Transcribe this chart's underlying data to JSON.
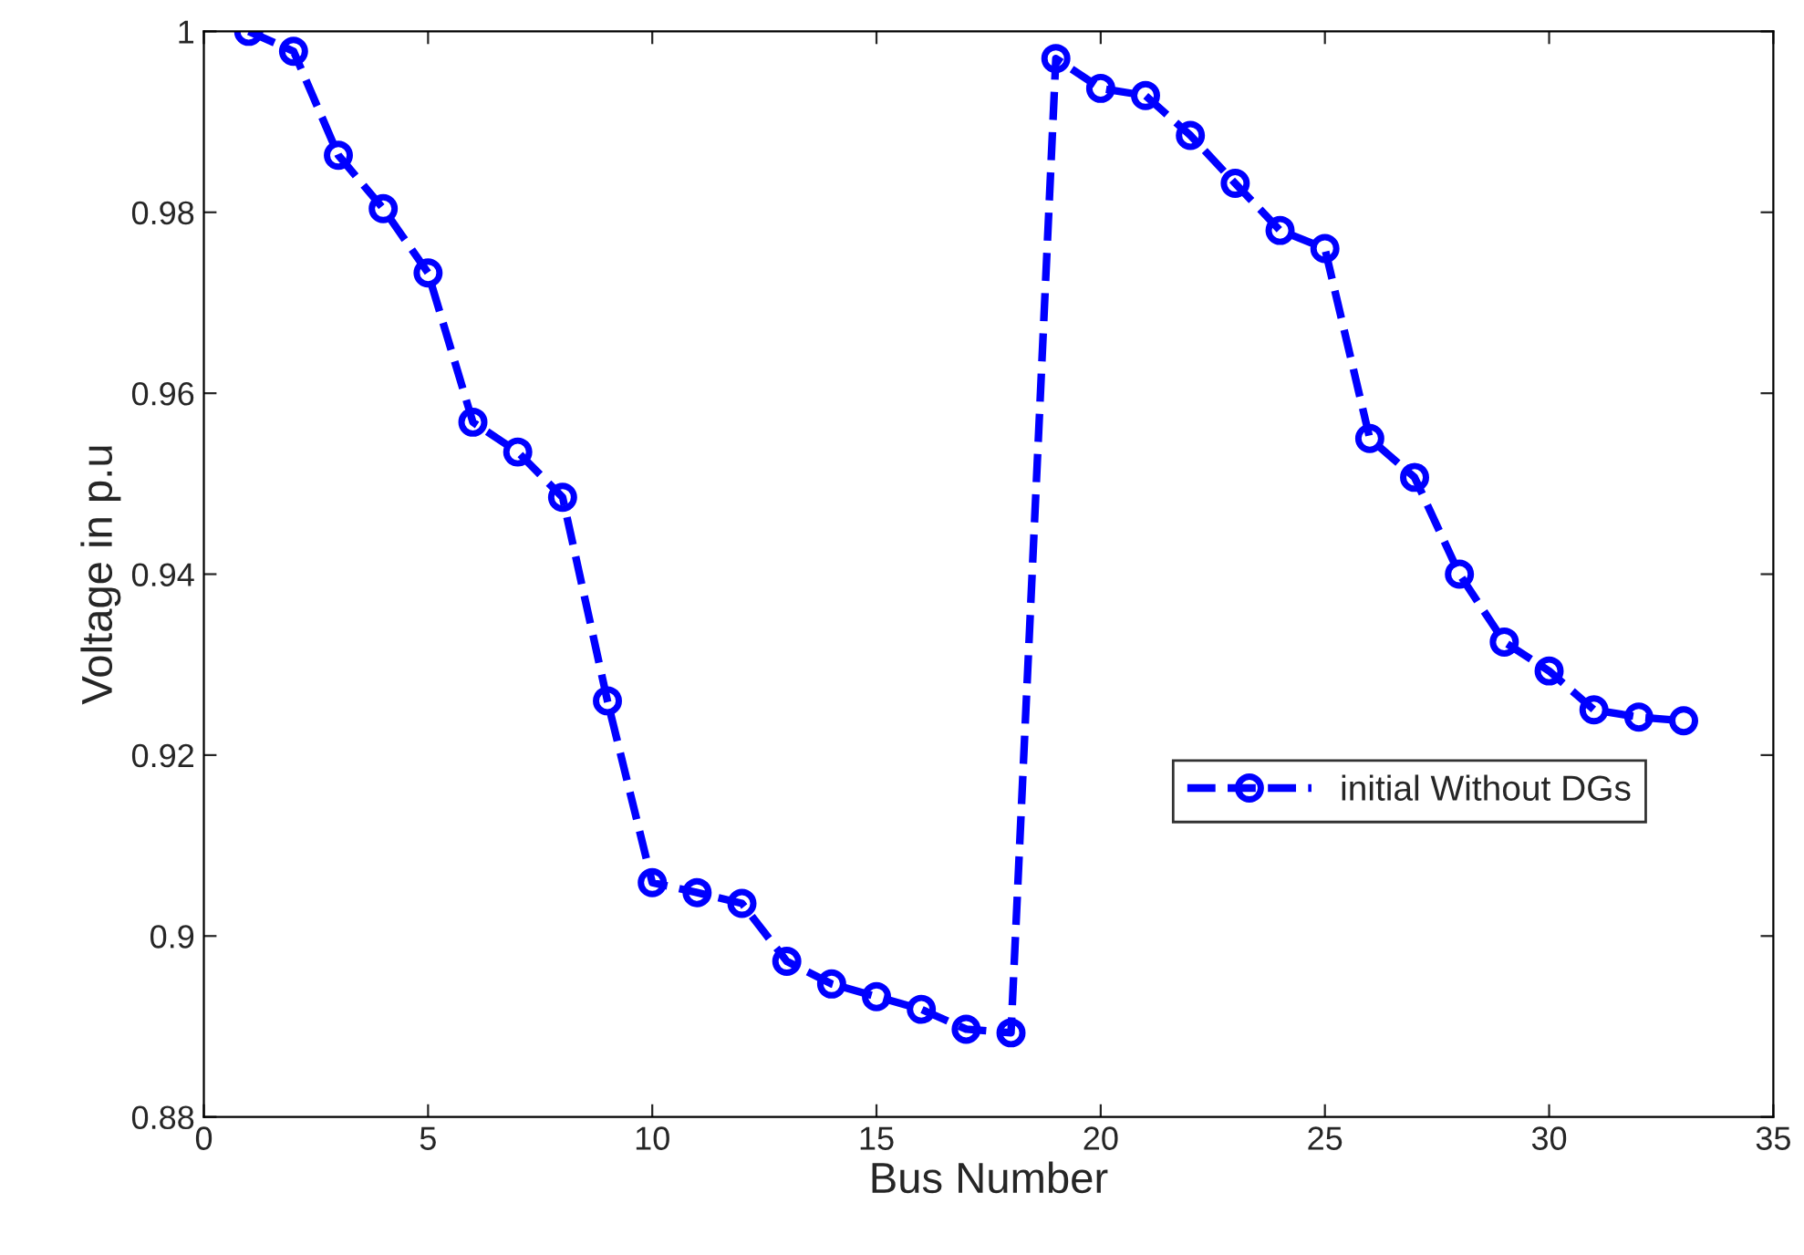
{
  "chart_data": {
    "type": "line",
    "xlabel": "Bus Number",
    "ylabel": "Voltage in p.u",
    "x": [
      1,
      2,
      3,
      4,
      5,
      6,
      7,
      8,
      9,
      10,
      11,
      12,
      13,
      14,
      15,
      16,
      17,
      18,
      19,
      20,
      21,
      22,
      23,
      24,
      25,
      26,
      27,
      28,
      29,
      30,
      31,
      32,
      33
    ],
    "series": [
      {
        "name": "initial Without DGs",
        "color": "#0000ff",
        "values": [
          1.0,
          0.9978,
          0.9863,
          0.9804,
          0.9733,
          0.9568,
          0.9535,
          0.9485,
          0.926,
          0.9059,
          0.9048,
          0.9036,
          0.8972,
          0.8947,
          0.8933,
          0.8919,
          0.8897,
          0.8893,
          0.997,
          0.9937,
          0.9929,
          0.9885,
          0.9832,
          0.978,
          0.976,
          0.955,
          0.9507,
          0.94,
          0.9325,
          0.9293,
          0.925,
          0.9242,
          0.9238
        ]
      }
    ],
    "xlim": [
      0,
      35
    ],
    "xticks": [
      0,
      5,
      10,
      15,
      20,
      25,
      30,
      35
    ],
    "ylim": [
      0.88,
      1.0
    ],
    "yticks": [
      0.88,
      0.9,
      0.92,
      0.94,
      0.96,
      0.98,
      1
    ],
    "marker": "circle",
    "line_style": "dashed",
    "legend": "right",
    "grid": false
  }
}
